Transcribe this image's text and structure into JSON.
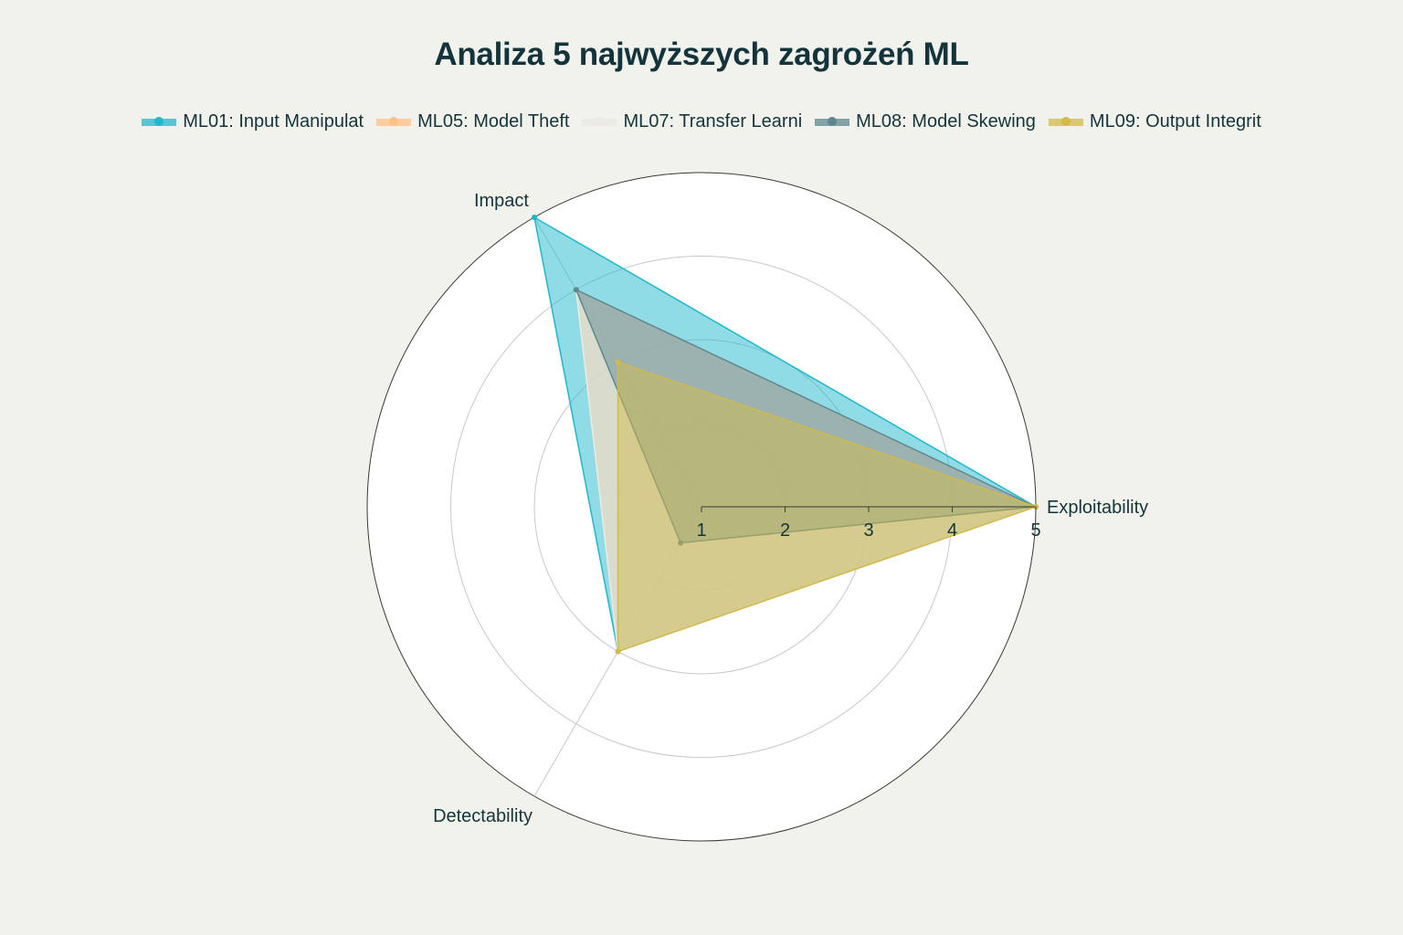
{
  "chart_data": {
    "type": "radar",
    "title": "Analiza 5 najwyższych zagrożeń ML",
    "axes": [
      "Exploitability",
      "Impact",
      "Detectability"
    ],
    "radial_range": [
      1,
      5
    ],
    "radial_ticks": [
      "1",
      "2",
      "3",
      "4",
      "5"
    ],
    "grid": true,
    "legend_position": "top",
    "series": [
      {
        "name": "ML01: Input Manipulat",
        "values": [
          5,
          5,
          3
        ],
        "color": "#1fb8cd"
      },
      {
        "name": "ML05: Model Theft",
        "values": [
          5,
          4,
          3
        ],
        "color": "#ffc185"
      },
      {
        "name": "ML07: Transfer Learni",
        "values": [
          5,
          4,
          3
        ],
        "color": "#eceae4"
      },
      {
        "name": "ML08: Model Skewing",
        "values": [
          5,
          4,
          1.5
        ],
        "color": "#5d878f"
      },
      {
        "name": "ML09: Output Integrit",
        "values": [
          5,
          3,
          3
        ],
        "color": "#d2ba4c"
      }
    ]
  }
}
